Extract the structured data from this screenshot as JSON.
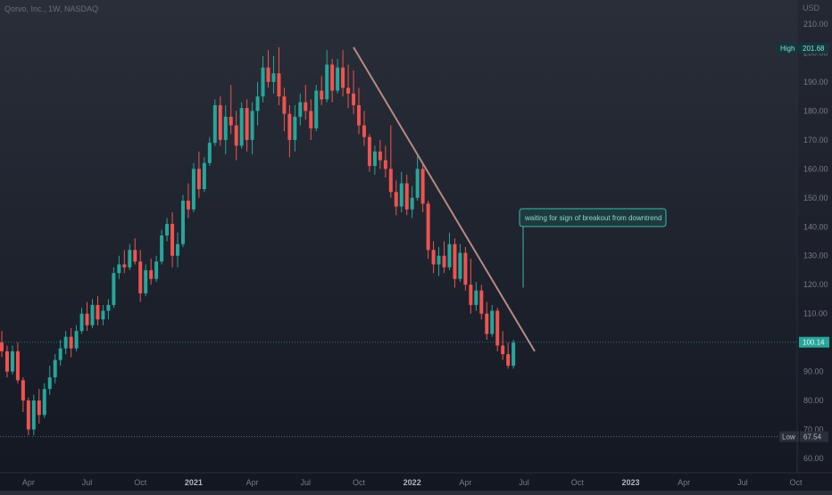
{
  "header": {
    "symbol_title": "Qorvo, Inc., 1W, NASDAQ",
    "currency": "USD"
  },
  "colors": {
    "up": "#26a69a",
    "down": "#ef5350",
    "trendline": "#b58a86",
    "callout": "#3ab7aa",
    "callout_bg": "#1d3b3f",
    "text": "#787b86",
    "grid": "#2b2f3a"
  },
  "chart_data": {
    "type": "candlestick",
    "title": "Qorvo, Inc., 1W, NASDAQ",
    "ylabel": "USD",
    "ylim": [
      55,
      214
    ],
    "yticks": [
      60,
      70,
      80,
      90,
      100,
      110,
      120,
      130,
      140,
      150,
      160,
      170,
      180,
      190,
      200,
      210
    ],
    "x_ticks": [
      "Apr",
      "Jul",
      "Oct",
      "2021",
      "Apr",
      "Jul",
      "Oct",
      "2022",
      "Apr",
      "Jul",
      "Oct",
      "2023",
      "Apr",
      "Jul",
      "Oct"
    ],
    "x_ticks_bold": [
      "2021",
      "2022",
      "2023"
    ],
    "grid": false,
    "high_marker": {
      "label": "High",
      "value": 201.68
    },
    "low_marker": {
      "label": "Low",
      "value": 67.54
    },
    "last_price": 100.14,
    "candles": [
      [
        100,
        104,
        95,
        97
      ],
      [
        97,
        99,
        88,
        90
      ],
      [
        90,
        99,
        89,
        97
      ],
      [
        97,
        100,
        86,
        87
      ],
      [
        87,
        88,
        76,
        80
      ],
      [
        80,
        81,
        68,
        70
      ],
      [
        70,
        82,
        68,
        80
      ],
      [
        80,
        84,
        72,
        75
      ],
      [
        75,
        86,
        74,
        84
      ],
      [
        84,
        92,
        82,
        88
      ],
      [
        88,
        96,
        86,
        94
      ],
      [
        94,
        101,
        92,
        98
      ],
      [
        98,
        104,
        96,
        102
      ],
      [
        102,
        105,
        95,
        98
      ],
      [
        98,
        106,
        97,
        104
      ],
      [
        104,
        112,
        103,
        110
      ],
      [
        110,
        114,
        104,
        106
      ],
      [
        106,
        115,
        105,
        113
      ],
      [
        113,
        116,
        106,
        108
      ],
      [
        108,
        113,
        106,
        111
      ],
      [
        111,
        115,
        108,
        113
      ],
      [
        113,
        126,
        112,
        124
      ],
      [
        124,
        130,
        122,
        127
      ],
      [
        127,
        132,
        124,
        126
      ],
      [
        126,
        134,
        125,
        132
      ],
      [
        132,
        136,
        127,
        128
      ],
      [
        128,
        132,
        114,
        117
      ],
      [
        117,
        127,
        116,
        125
      ],
      [
        125,
        129,
        120,
        122
      ],
      [
        122,
        130,
        121,
        128
      ],
      [
        128,
        139,
        127,
        137
      ],
      [
        137,
        143,
        135,
        141
      ],
      [
        141,
        145,
        126,
        130
      ],
      [
        130,
        138,
        126,
        134
      ],
      [
        134,
        151,
        133,
        149
      ],
      [
        149,
        155,
        143,
        146
      ],
      [
        146,
        162,
        145,
        160
      ],
      [
        160,
        166,
        150,
        153
      ],
      [
        153,
        164,
        152,
        162
      ],
      [
        162,
        171,
        161,
        169
      ],
      [
        169,
        184,
        168,
        182
      ],
      [
        182,
        185,
        168,
        170
      ],
      [
        170,
        182,
        165,
        178
      ],
      [
        178,
        189,
        172,
        175
      ],
      [
        175,
        180,
        163,
        168
      ],
      [
        168,
        183,
        167,
        181
      ],
      [
        181,
        184,
        166,
        170
      ],
      [
        170,
        183,
        165,
        180
      ],
      [
        180,
        190,
        175,
        185
      ],
      [
        185,
        199,
        183,
        195
      ],
      [
        195,
        201,
        188,
        190
      ],
      [
        190,
        199,
        186,
        193
      ],
      [
        193,
        202,
        182,
        185
      ],
      [
        185,
        188,
        173,
        179
      ],
      [
        179,
        182,
        164,
        170
      ],
      [
        170,
        182,
        166,
        178
      ],
      [
        178,
        186,
        175,
        183
      ],
      [
        183,
        189,
        177,
        180
      ],
      [
        180,
        184,
        170,
        174
      ],
      [
        174,
        189,
        173,
        187
      ],
      [
        187,
        192,
        182,
        184
      ],
      [
        184,
        201,
        183,
        196
      ],
      [
        196,
        198,
        183,
        187
      ],
      [
        187,
        198,
        186,
        195
      ],
      [
        195,
        201,
        185,
        188
      ],
      [
        188,
        196,
        181,
        186
      ],
      [
        186,
        194,
        179,
        182
      ],
      [
        182,
        188,
        172,
        175
      ],
      [
        175,
        180,
        168,
        171
      ],
      [
        171,
        172,
        159,
        161
      ],
      [
        161,
        168,
        158,
        166
      ],
      [
        166,
        170,
        160,
        163
      ],
      [
        163,
        168,
        157,
        160
      ],
      [
        160,
        175,
        150,
        152
      ],
      [
        152,
        156,
        144,
        147
      ],
      [
        147,
        159,
        145,
        155
      ],
      [
        155,
        158,
        144,
        146
      ],
      [
        146,
        154,
        143,
        150
      ],
      [
        150,
        165,
        149,
        160
      ],
      [
        160,
        162,
        145,
        148
      ],
      [
        148,
        149,
        129,
        132
      ],
      [
        132,
        135,
        124,
        127
      ],
      [
        127,
        133,
        123,
        130
      ],
      [
        130,
        135,
        124,
        126
      ],
      [
        126,
        138,
        125,
        134
      ],
      [
        134,
        136,
        119,
        122
      ],
      [
        122,
        134,
        121,
        131
      ],
      [
        131,
        133,
        118,
        120
      ],
      [
        120,
        129,
        110,
        113
      ],
      [
        113,
        121,
        111,
        118
      ],
      [
        118,
        120,
        108,
        110
      ],
      [
        110,
        114,
        101,
        103
      ],
      [
        103,
        113,
        102,
        111
      ],
      [
        111,
        112,
        97,
        99
      ],
      [
        99,
        104,
        94,
        96
      ],
      [
        96,
        100,
        91,
        92
      ],
      [
        92,
        101,
        91,
        100
      ]
    ],
    "trendline": {
      "from_index": 66,
      "from_value": 202,
      "to_index": 100,
      "to_value": 97
    },
    "annotation": {
      "text": "waiting for sign of breakout from downtrend",
      "anchor_index": 98,
      "anchor_value": 119
    }
  }
}
